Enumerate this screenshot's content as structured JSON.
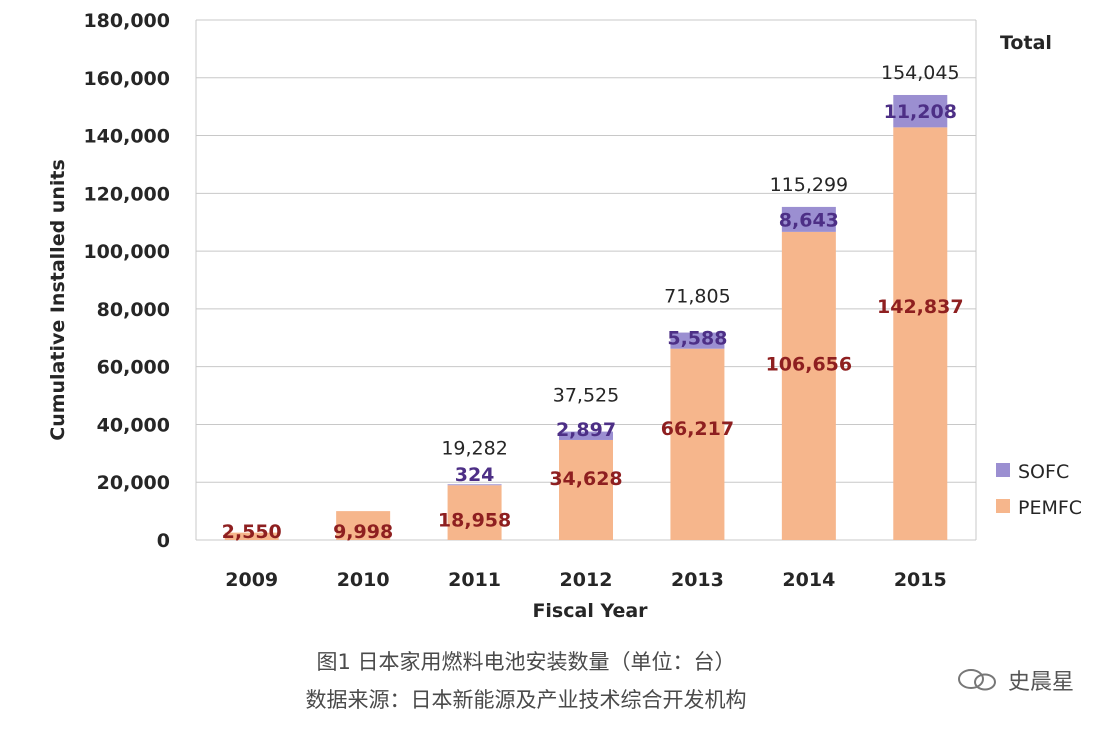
{
  "chart_data": {
    "type": "bar",
    "stacked": true,
    "categories": [
      "2009",
      "2010",
      "2011",
      "2012",
      "2013",
      "2014",
      "2015"
    ],
    "series": [
      {
        "name": "PEMFC",
        "values": [
          2550,
          9998,
          18958,
          34628,
          66217,
          106656,
          142837
        ],
        "labels": [
          "2,550",
          "9,998",
          "18,958",
          "34,628",
          "66,217",
          "106,656",
          "142,837"
        ]
      },
      {
        "name": "SOFC",
        "values": [
          0,
          0,
          324,
          2897,
          5588,
          8643,
          11208
        ],
        "labels": [
          "",
          "",
          "324",
          "2,897",
          "5,588",
          "8,643",
          "11,208"
        ]
      }
    ],
    "totals": [
      "",
      "",
      "19,282",
      "37,525",
      "71,805",
      "115,299",
      "154,045"
    ],
    "total_header": "Total",
    "xlabel": "Fiscal Year",
    "ylabel": "Cumulative Installed units",
    "ylim": [
      0,
      180000
    ],
    "yticks": [
      "0",
      "20,000",
      "40,000",
      "60,000",
      "80,000",
      "100,000",
      "120,000",
      "140,000",
      "160,000",
      "180,000"
    ],
    "grid": true,
    "legend_position": "right",
    "colors": {
      "PEMFC": "#f6b68c",
      "SOFC": "#9b8fd1",
      "grid": "#c8c8c8"
    }
  },
  "caption": {
    "line1": "图1   日本家用燃料电池安装数量（单位：台）",
    "line2": "数据来源：日本新能源及产业技术综合开发机构"
  },
  "watermark": {
    "text": "史晨星",
    "icon": "wechat-icon"
  }
}
